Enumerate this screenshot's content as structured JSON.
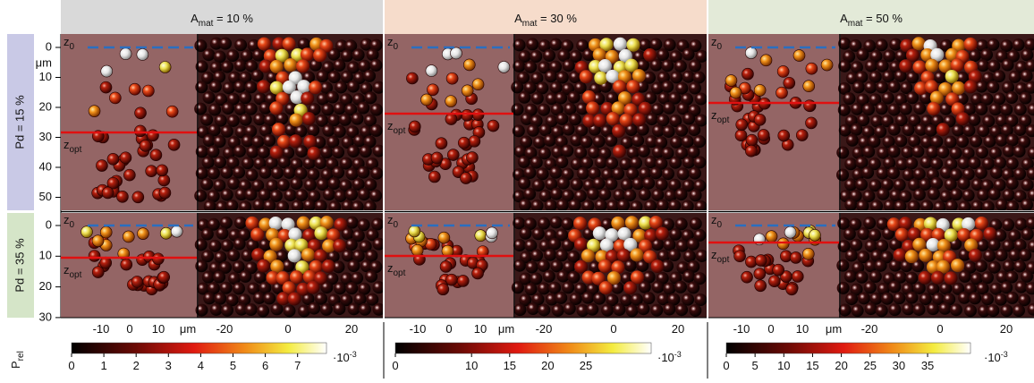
{
  "columns": [
    {
      "header": {
        "base": "A",
        "sub": "mat",
        "rest": " = 10 %"
      },
      "x_ticks_left": [
        "-10",
        "0",
        "10"
      ],
      "x_unit": "μm",
      "x_ticks_right": [
        "-20",
        "0",
        "20"
      ],
      "colorbar": {
        "ticks": [
          "0",
          "1",
          "2",
          "3",
          "4",
          "5",
          "6",
          "7"
        ],
        "scale": {
          "base": "·10",
          "sup": "-3"
        }
      }
    },
    {
      "header": {
        "base": "A",
        "sub": "mat",
        "rest": " = 30 %"
      },
      "x_ticks_left": [
        "-10",
        "0",
        "10"
      ],
      "x_unit": "μm",
      "x_ticks_right": [
        "-20",
        "0",
        "20"
      ],
      "colorbar": {
        "ticks": [
          "0",
          "10",
          "15",
          "20",
          "25"
        ],
        "scale": {
          "base": "·10",
          "sup": "-3"
        }
      }
    },
    {
      "header": {
        "base": "A",
        "sub": "mat",
        "rest": " = 50 %"
      },
      "x_ticks_left": [
        "-10",
        "0",
        "10"
      ],
      "x_unit": "μm",
      "x_ticks_right": [
        "-20",
        "0",
        "20"
      ],
      "colorbar": {
        "ticks": [
          "0",
          "5",
          "10",
          "15",
          "20",
          "25",
          "30",
          "35"
        ],
        "scale": {
          "base": "·10",
          "sup": "-3"
        }
      }
    }
  ],
  "rows": [
    {
      "label": "Pd = 15 %",
      "y_ticks": [
        "0",
        "10",
        "20",
        "30",
        "40",
        "50"
      ],
      "y_unit": "μm"
    },
    {
      "label": "Pd = 35 %",
      "y_ticks": [
        "0",
        "10",
        "20",
        "30"
      ]
    }
  ],
  "markers": {
    "z0": {
      "base": "z",
      "sub": "0"
    },
    "zopt": {
      "base": "z",
      "sub": "opt"
    }
  },
  "colorbar_label": {
    "base": "P",
    "sub": "rel"
  }
}
